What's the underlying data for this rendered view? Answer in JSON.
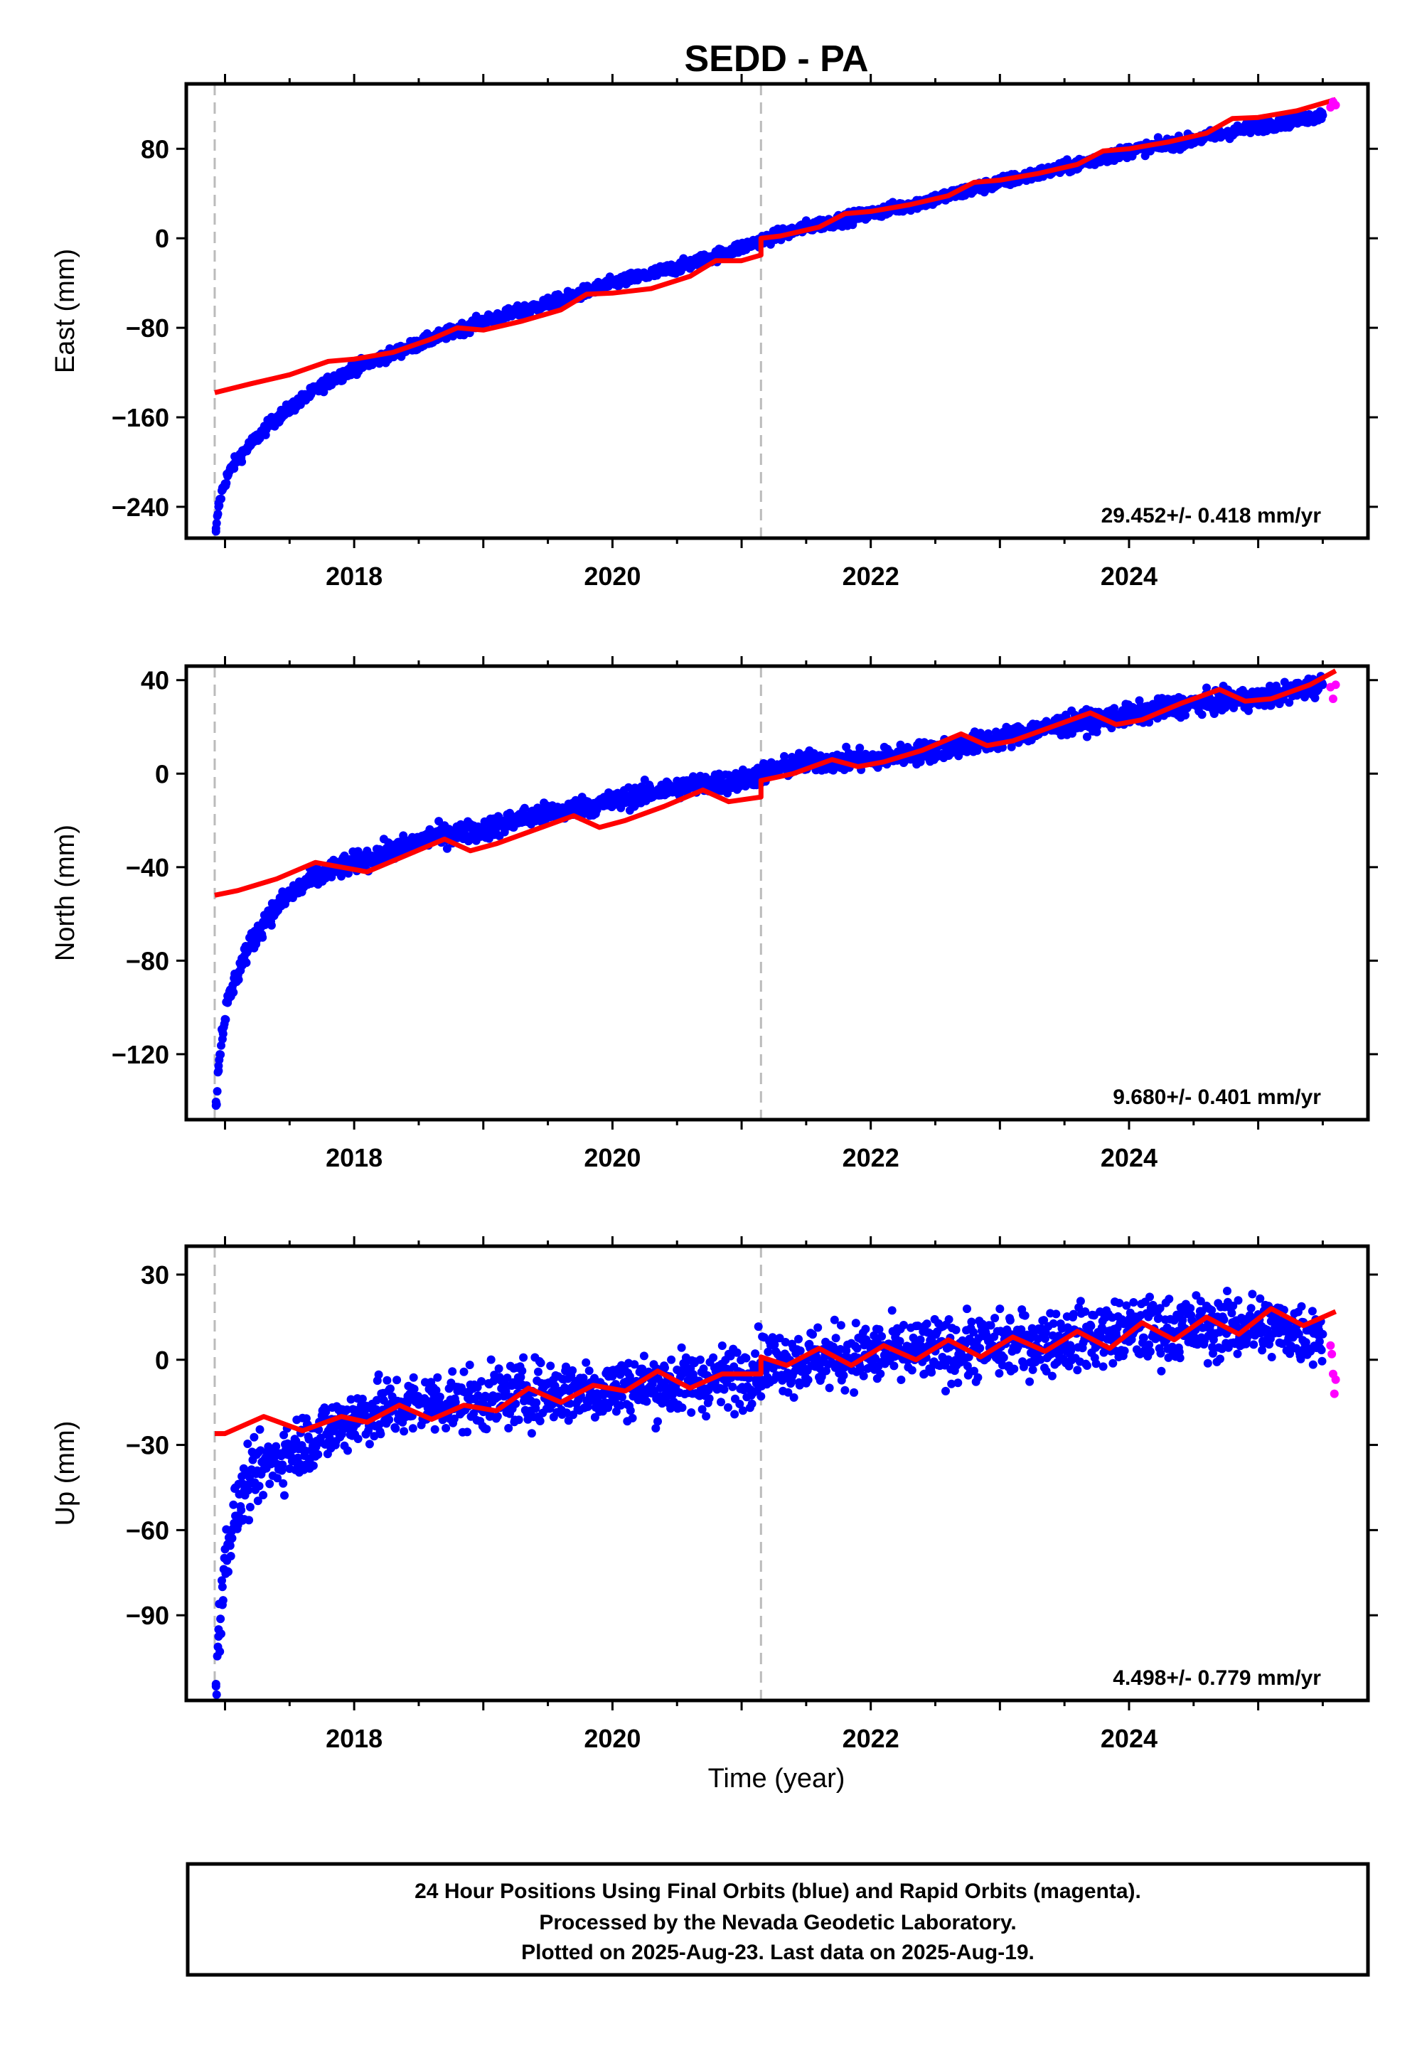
{
  "figure": {
    "title": "SEDD - PA",
    "xlabel": "Time (year)",
    "footer": [
      "24 Hour Positions Using Final Orbits (blue) and Rapid Orbits (magenta).",
      "Processed by the Nevada Geodetic Laboratory.",
      "Plotted on 2025-Aug-23. Last data on 2025-Aug-19."
    ]
  },
  "colors": {
    "final_orbits": "#0000ff",
    "rapid_orbits": "#ff00ff",
    "model_fit": "#ff0000",
    "event_lines": "#bbbbbb",
    "frame": "#000000"
  },
  "chart_data": [
    {
      "type": "scatter",
      "panel": "east",
      "ylabel": "East (mm)",
      "rate_text": "29.452+/- 0.418 mm/yr",
      "xlim": [
        2016.7,
        2025.85
      ],
      "ylim": [
        -268,
        138
      ],
      "xticks": [
        2018,
        2020,
        2022,
        2024
      ],
      "yticks": [
        80,
        0,
        -80,
        -160,
        -240
      ],
      "event_lines": [
        2016.92,
        2021.15
      ],
      "series": [
        {
          "role": "final",
          "x": [
            2016.93,
            2016.95,
            2016.98,
            2017.02,
            2017.08,
            2017.15,
            2017.25,
            2017.35,
            2017.5,
            2017.65,
            2017.8,
            2018.0,
            2018.3,
            2018.6,
            2019.0,
            2019.3,
            2019.6,
            2020.0,
            2020.3,
            2020.6,
            2021.0,
            2021.15,
            2021.5,
            2022.0,
            2022.5,
            2023.0,
            2023.5,
            2024.0,
            2024.5,
            2025.0,
            2025.5
          ],
          "y": [
            -262,
            -240,
            -225,
            -212,
            -200,
            -190,
            -178,
            -166,
            -152,
            -140,
            -128,
            -116,
            -103,
            -90,
            -74,
            -65,
            -55,
            -40,
            -32,
            -23,
            -8,
            -2,
            10,
            22,
            35,
            50,
            63,
            78,
            88,
            100,
            110
          ]
        },
        {
          "role": "rapid",
          "x": [
            2025.56,
            2025.58,
            2025.6
          ],
          "y": [
            117,
            122,
            119
          ]
        },
        {
          "role": "model",
          "x": [
            2016.92,
            2017.2,
            2017.5,
            2017.8,
            2018.0,
            2018.3,
            2018.6,
            2018.8,
            2019.0,
            2019.3,
            2019.6,
            2019.8,
            2020.0,
            2020.3,
            2020.6,
            2020.8,
            2021.0,
            2021.15,
            2021.15,
            2021.3,
            2021.6,
            2021.8,
            2022.0,
            2022.3,
            2022.6,
            2022.8,
            2023.0,
            2023.3,
            2023.6,
            2023.8,
            2024.0,
            2024.3,
            2024.6,
            2024.8,
            2025.0,
            2025.3,
            2025.6
          ],
          "y": [
            -138,
            -130,
            -122,
            -110,
            -108,
            -102,
            -90,
            -80,
            -82,
            -74,
            -64,
            -50,
            -49,
            -45,
            -34,
            -20,
            -20,
            -15,
            0,
            2,
            10,
            22,
            24,
            30,
            38,
            50,
            52,
            58,
            66,
            78,
            80,
            86,
            94,
            107,
            108,
            114,
            124
          ]
        }
      ]
    },
    {
      "type": "scatter",
      "panel": "north",
      "ylabel": "North (mm)",
      "rate_text": "9.680+/- 0.401 mm/yr",
      "xlim": [
        2016.7,
        2025.85
      ],
      "ylim": [
        -148,
        46
      ],
      "xticks": [
        2018,
        2020,
        2022,
        2024
      ],
      "yticks": [
        40,
        0,
        -40,
        -80,
        -120
      ],
      "event_lines": [
        2016.92,
        2021.15
      ],
      "series": [
        {
          "role": "final",
          "x": [
            2016.93,
            2016.95,
            2016.98,
            2017.02,
            2017.08,
            2017.15,
            2017.25,
            2017.35,
            2017.5,
            2017.65,
            2017.8,
            2018.0,
            2018.3,
            2018.6,
            2019.0,
            2019.3,
            2019.6,
            2020.0,
            2020.3,
            2020.6,
            2021.0,
            2021.15,
            2021.5,
            2022.0,
            2022.5,
            2023.0,
            2023.5,
            2024.0,
            2024.5,
            2025.0,
            2025.5
          ],
          "y": [
            -142,
            -125,
            -110,
            -98,
            -88,
            -78,
            -68,
            -60,
            -52,
            -46,
            -42,
            -38,
            -33,
            -27,
            -24,
            -19,
            -16,
            -12,
            -8,
            -5,
            -3,
            0,
            5,
            6,
            10,
            15,
            21,
            25,
            30,
            32,
            38
          ]
        },
        {
          "role": "rapid",
          "x": [
            2025.56,
            2025.58,
            2025.6
          ],
          "y": [
            37,
            32,
            38
          ]
        },
        {
          "role": "model",
          "x": [
            2016.92,
            2017.1,
            2017.4,
            2017.7,
            2017.9,
            2018.1,
            2018.4,
            2018.7,
            2018.9,
            2019.1,
            2019.4,
            2019.7,
            2019.9,
            2020.1,
            2020.4,
            2020.7,
            2020.9,
            2021.15,
            2021.15,
            2021.4,
            2021.7,
            2021.9,
            2022.1,
            2022.4,
            2022.7,
            2022.9,
            2023.1,
            2023.4,
            2023.7,
            2023.9,
            2024.1,
            2024.4,
            2024.7,
            2024.9,
            2025.1,
            2025.4,
            2025.6
          ],
          "y": [
            -52,
            -50,
            -45,
            -38,
            -40,
            -42,
            -35,
            -28,
            -33,
            -30,
            -24,
            -18,
            -23,
            -20,
            -14,
            -7,
            -12,
            -10,
            -3,
            0,
            6,
            3,
            5,
            10,
            17,
            12,
            14,
            20,
            26,
            21,
            23,
            30,
            36,
            31,
            32,
            38,
            44
          ]
        }
      ]
    },
    {
      "type": "scatter",
      "panel": "up",
      "ylabel": "Up (mm)",
      "rate_text": "4.498+/- 0.779 mm/yr",
      "xlim": [
        2016.7,
        2025.85
      ],
      "ylim": [
        -120,
        40
      ],
      "xticks": [
        2018,
        2020,
        2022,
        2024
      ],
      "yticks": [
        30,
        0,
        -30,
        -60,
        -90
      ],
      "event_lines": [
        2016.92,
        2021.15
      ],
      "series": [
        {
          "role": "final",
          "x": [
            2016.93,
            2016.95,
            2016.98,
            2017.02,
            2017.08,
            2017.15,
            2017.25,
            2017.35,
            2017.5,
            2017.65,
            2017.8,
            2018.0,
            2018.3,
            2018.6,
            2019.0,
            2019.3,
            2019.6,
            2020.0,
            2020.3,
            2020.6,
            2021.0,
            2021.15,
            2021.5,
            2022.0,
            2022.5,
            2023.0,
            2023.5,
            2024.0,
            2024.5,
            2025.0,
            2025.5
          ],
          "y": [
            -115,
            -95,
            -80,
            -65,
            -55,
            -46,
            -40,
            -36,
            -32,
            -28,
            -25,
            -20,
            -17,
            -15,
            -14,
            -12,
            -11,
            -10,
            -9,
            -8,
            -6,
            -1,
            0,
            2,
            3,
            5,
            7,
            10,
            11,
            12,
            9
          ]
        },
        {
          "role": "rapid",
          "x": [
            2025.56,
            2025.57,
            2025.58,
            2025.59,
            2025.6
          ],
          "y": [
            5,
            2,
            -5,
            -12,
            -7
          ]
        },
        {
          "role": "model",
          "x": [
            2016.92,
            2017.0,
            2017.3,
            2017.6,
            2017.9,
            2018.1,
            2018.35,
            2018.6,
            2018.85,
            2019.1,
            2019.35,
            2019.6,
            2019.85,
            2020.1,
            2020.35,
            2020.6,
            2020.85,
            2021.15,
            2021.15,
            2021.35,
            2021.6,
            2021.85,
            2022.1,
            2022.35,
            2022.6,
            2022.85,
            2023.1,
            2023.35,
            2023.6,
            2023.85,
            2024.1,
            2024.35,
            2024.6,
            2024.85,
            2025.1,
            2025.35,
            2025.6
          ],
          "y": [
            -26,
            -26,
            -20,
            -25,
            -20,
            -22,
            -16,
            -21,
            -16,
            -18,
            -10,
            -15,
            -9,
            -11,
            -4,
            -10,
            -5,
            -5,
            1,
            -2,
            4,
            -2,
            5,
            0,
            7,
            1,
            8,
            3,
            10,
            4,
            13,
            7,
            15,
            9,
            18,
            12,
            17
          ]
        }
      ]
    }
  ]
}
